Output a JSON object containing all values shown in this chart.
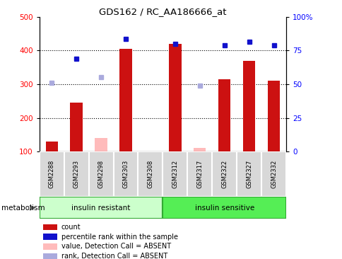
{
  "title": "GDS162 / RC_AA186666_at",
  "samples": [
    "GSM2288",
    "GSM2293",
    "GSM2298",
    "GSM2303",
    "GSM2308",
    "GSM2312",
    "GSM2317",
    "GSM2322",
    "GSM2327",
    "GSM2332"
  ],
  "counts_present": [
    130,
    245,
    null,
    405,
    null,
    420,
    null,
    315,
    370,
    310
  ],
  "counts_absent": [
    null,
    null,
    140,
    null,
    null,
    null,
    110,
    null,
    null,
    null
  ],
  "ranks_present": [
    null,
    375,
    null,
    435,
    null,
    420,
    null,
    415,
    425,
    415
  ],
  "ranks_absent": [
    305,
    null,
    320,
    null,
    null,
    null,
    295,
    null,
    null,
    null
  ],
  "ylim_left": [
    100,
    500
  ],
  "yticks_left": [
    100,
    200,
    300,
    400,
    500
  ],
  "yticks_right": [
    0,
    25,
    50,
    75,
    100
  ],
  "ytick_labels_right": [
    "0",
    "25",
    "50",
    "75",
    "100%"
  ],
  "bar_color_present": "#cc1111",
  "bar_color_absent": "#ffbbbb",
  "dot_color_present": "#1111cc",
  "dot_color_absent": "#aaaadd",
  "legend_items": [
    {
      "label": "count",
      "color": "#cc1111"
    },
    {
      "label": "percentile rank within the sample",
      "color": "#1111cc"
    },
    {
      "label": "value, Detection Call = ABSENT",
      "color": "#ffbbbb"
    },
    {
      "label": "rank, Detection Call = ABSENT",
      "color": "#aaaadd"
    }
  ]
}
